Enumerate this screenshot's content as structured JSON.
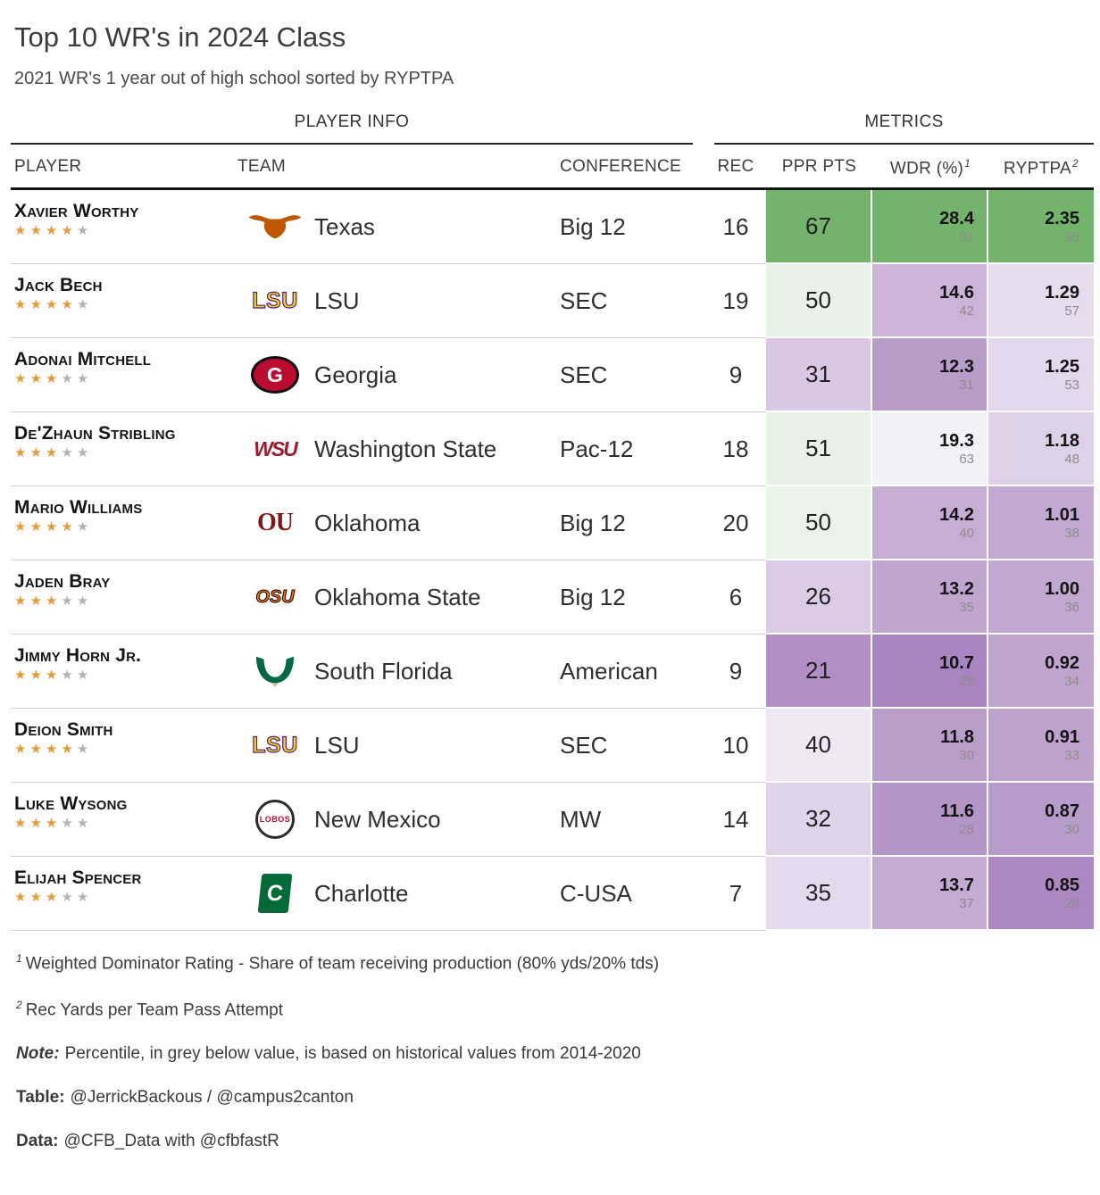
{
  "chart_data": {
    "type": "table",
    "title": "Top 10 WR's in 2024 Class",
    "subtitle": "2021 WR's 1 year out of high school sorted by RYPTPA",
    "groups": {
      "player_info": "PLAYER INFO",
      "metrics": "METRICS"
    },
    "columns": {
      "player": "PLAYER",
      "team": "TEAM",
      "conference": "CONFERENCE",
      "rec": "REC",
      "ppr": "PPR PTS",
      "wdr": "WDR (%)",
      "wdr_sup": "1",
      "ryptpa": "RYPTPA",
      "ryptpa_sup": "2"
    },
    "rows": [
      {
        "player": "Xavier Worthy",
        "stars": 4,
        "team": "Texas",
        "logo_icon": "texas-longhorn-icon",
        "conference": "Big 12",
        "rec": "16",
        "ppr": "67",
        "wdr": "28.4",
        "wdr_pct": "91",
        "ryptpa": "2.35",
        "ryptpa_pct": "98",
        "cell_colors": {
          "ppr": "#74b36b",
          "wdr": "#74b36b",
          "ryptpa": "#74b36b"
        }
      },
      {
        "player": "Jack Bech",
        "stars": 4,
        "team": "LSU",
        "logo_icon": "lsu-letters-icon",
        "conference": "SEC",
        "rec": "19",
        "ppr": "50",
        "wdr": "14.6",
        "wdr_pct": "42",
        "ryptpa": "1.29",
        "ryptpa_pct": "57",
        "cell_colors": {
          "ppr": "#e8f2e6",
          "wdr": "#cbb4d8",
          "ryptpa": "#e6dcee"
        }
      },
      {
        "player": "Adonai Mitchell",
        "stars": 3,
        "team": "Georgia",
        "logo_icon": "georgia-g-icon",
        "conference": "SEC",
        "rec": "9",
        "ppr": "31",
        "wdr": "12.3",
        "wdr_pct": "31",
        "ryptpa": "1.25",
        "ryptpa_pct": "53",
        "cell_colors": {
          "ppr": "#d9c7e3",
          "wdr": "#b89cca",
          "ryptpa": "#e4d9ec"
        }
      },
      {
        "player": "De'Zhaun Stribling",
        "stars": 3,
        "team": "Washington State",
        "logo_icon": "washington-state-cougar-icon",
        "conference": "Pac-12",
        "rec": "18",
        "ppr": "51",
        "wdr": "19.3",
        "wdr_pct": "63",
        "ryptpa": "1.18",
        "ryptpa_pct": "48",
        "cell_colors": {
          "ppr": "#e7f1e5",
          "wdr": "#f4f1f6",
          "ryptpa": "#ded1e8"
        }
      },
      {
        "player": "Mario Williams",
        "stars": 4,
        "team": "Oklahoma",
        "logo_icon": "oklahoma-ou-icon",
        "conference": "Big 12",
        "rec": "20",
        "ppr": "50",
        "wdr": "14.2",
        "wdr_pct": "40",
        "ryptpa": "1.01",
        "ryptpa_pct": "38",
        "cell_colors": {
          "ppr": "#e9f3e7",
          "wdr": "#c5add4",
          "ryptpa": "#c2a9d1"
        }
      },
      {
        "player": "Jaden Bray",
        "stars": 3,
        "team": "Oklahoma State",
        "logo_icon": "oklahoma-state-osu-icon",
        "conference": "Big 12",
        "rec": "6",
        "ppr": "26",
        "wdr": "13.2",
        "wdr_pct": "35",
        "ryptpa": "1.00",
        "ryptpa_pct": "36",
        "cell_colors": {
          "ppr": "#dccbe5",
          "wdr": "#c0a6cf",
          "ryptpa": "#c1a8d1"
        }
      },
      {
        "player": "Jimmy Horn Jr.",
        "stars": 3,
        "team": "South Florida",
        "logo_icon": "south-florida-bull-icon",
        "conference": "American",
        "rec": "9",
        "ppr": "21",
        "wdr": "10.7",
        "wdr_pct": "25",
        "ryptpa": "0.92",
        "ryptpa_pct": "34",
        "cell_colors": {
          "ppr": "#b18fc6",
          "wdr": "#a884c0",
          "ryptpa": "#bfa5ce"
        }
      },
      {
        "player": "Deion Smith",
        "stars": 4,
        "team": "LSU",
        "logo_icon": "lsu-letters-icon",
        "conference": "SEC",
        "rec": "10",
        "ppr": "40",
        "wdr": "11.8",
        "wdr_pct": "30",
        "ryptpa": "0.91",
        "ryptpa_pct": "33",
        "cell_colors": {
          "ppr": "#efe8f4",
          "wdr": "#b99eca",
          "ryptpa": "#bda2cd"
        }
      },
      {
        "player": "Luke Wysong",
        "stars": 3,
        "team": "New Mexico",
        "logo_icon": "new-mexico-lobo-icon",
        "conference": "MW",
        "rec": "14",
        "ppr": "32",
        "wdr": "11.6",
        "wdr_pct": "28",
        "ryptpa": "0.87",
        "ryptpa_pct": "30",
        "cell_colors": {
          "ppr": "#e1d4ea",
          "wdr": "#b495c7",
          "ryptpa": "#b79bca"
        }
      },
      {
        "player": "Elijah Spencer",
        "stars": 3,
        "team": "Charlotte",
        "logo_icon": "charlotte-c-icon",
        "conference": "C-USA",
        "rec": "7",
        "ppr": "35",
        "wdr": "13.7",
        "wdr_pct": "37",
        "ryptpa": "0.85",
        "ryptpa_pct": "29",
        "cell_colors": {
          "ppr": "#e5daed",
          "wdr": "#c3abd2",
          "ryptpa": "#ab88c2"
        }
      }
    ]
  },
  "footnotes": {
    "fn1_sup": "1",
    "fn1": "Weighted Dominator Rating - Share of team receiving production (80% yds/20% tds)",
    "fn2_sup": "2",
    "fn2": "Rec Yards per Team Pass Attempt",
    "note_label": "Note:",
    "note": "Percentile, in grey below value, is based on historical values from 2014-2020",
    "table_label": "Table:",
    "table": "@JerrickBackous / @campus2canton",
    "data_label": "Data:",
    "data": "@CFB_Data with @cfbfastR"
  },
  "colors": {
    "heat_high_green": "#74b36b",
    "heat_mid_white": "#f4f1f6",
    "heat_low_purple": "#a884c0",
    "star_filled": "#e39b3d",
    "star_empty": "#b3b3b3"
  }
}
